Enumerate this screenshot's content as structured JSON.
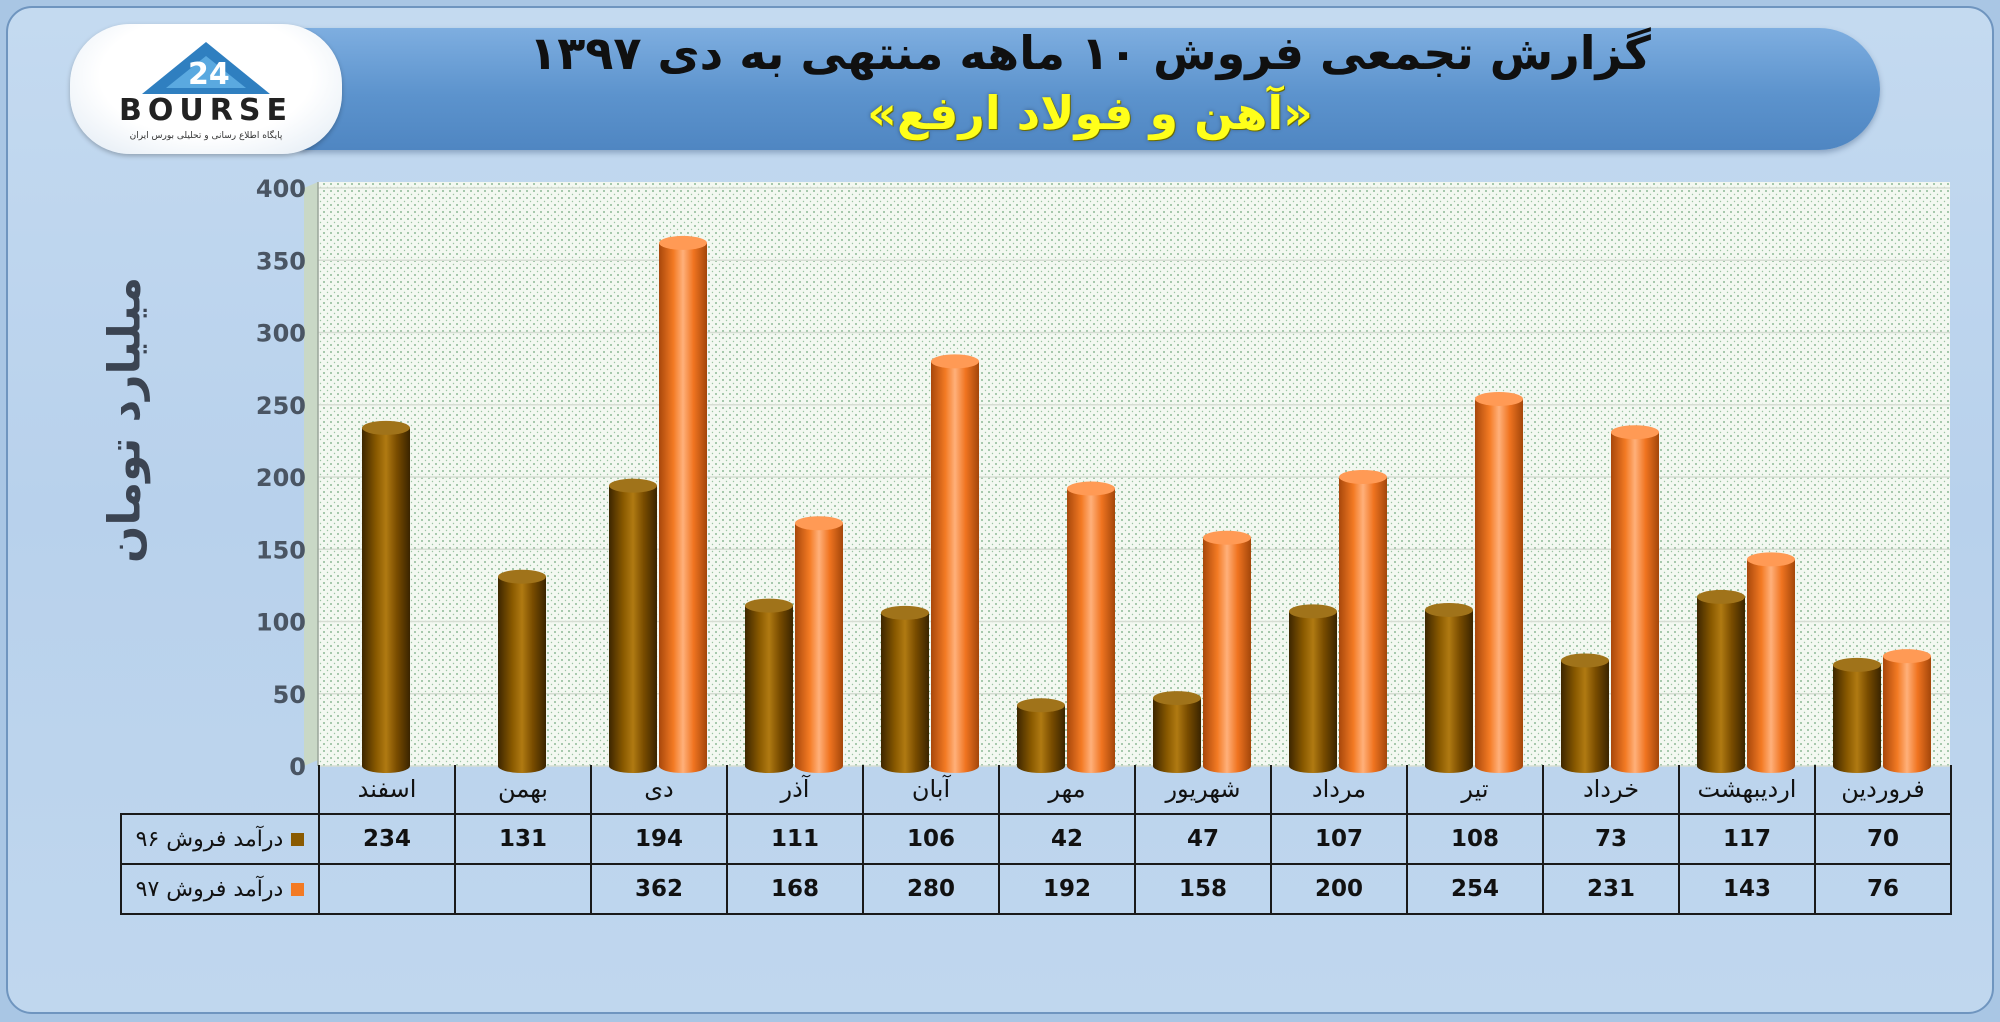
{
  "title": "گزارش تجمعی فروش ۱۰ ماهه منتهی به دی ۱۳۹۷",
  "company": "«آهن و فولاد ارفع»",
  "logo": {
    "brand": "BOURSE",
    "number": "24",
    "tagline": "پایگاه اطلاع رسانی و تحلیلی بورس ایران"
  },
  "colors": {
    "series96": "#8a5a00",
    "series97": "#f37a23"
  },
  "chart_data": {
    "type": "bar",
    "ylabel": "میلیارد تومان",
    "ylim": [
      0,
      400
    ],
    "yticks": [
      0,
      50,
      100,
      150,
      200,
      250,
      300,
      350,
      400
    ],
    "grid": true,
    "categories": [
      "فروردین",
      "اردیبهشت",
      "خرداد",
      "تیر",
      "مرداد",
      "شهریور",
      "مهر",
      "آبان",
      "آذر",
      "دی",
      "بهمن",
      "اسفند"
    ],
    "series": [
      {
        "name": "درآمد فروش ۹۶",
        "color": "#8a5a00",
        "values": [
          70,
          117,
          73,
          108,
          107,
          47,
          42,
          106,
          111,
          194,
          131,
          234
        ]
      },
      {
        "name": "درآمد فروش ۹۷",
        "color": "#f37a23",
        "values": [
          76,
          143,
          231,
          254,
          200,
          158,
          192,
          280,
          168,
          362,
          null,
          null
        ]
      }
    ]
  }
}
